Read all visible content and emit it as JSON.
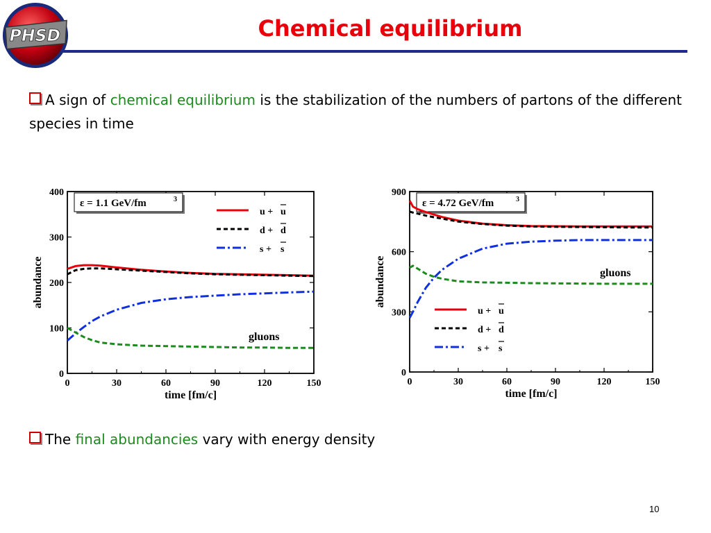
{
  "logo": {
    "text": "PHSD"
  },
  "title": "Chemical equilibrium",
  "bullets": [
    {
      "pre": "A sign of ",
      "highlight": "chemical equilibrium",
      "post": " is the stabilization of the numbers of partons of the different species in time"
    },
    {
      "pre": "The ",
      "highlight": "final abundancies",
      "post": " vary with energy density"
    }
  ],
  "page_number": "10",
  "colors": {
    "title": "#e8000b",
    "rule": "#1f2a8a",
    "highlight": "#1c8a1c",
    "quark_u": "#e8000b",
    "quark_d": "#000000",
    "quark_s": "#1030e0",
    "gluon": "#1c8a1c"
  },
  "chart_data": [
    {
      "type": "line",
      "annotation": "ε = 1.1 GeV/fm",
      "annotation_sup": "3",
      "xlabel": "time [fm/c]",
      "ylabel": "abundance",
      "xlim": [
        0,
        150
      ],
      "ylim": [
        0,
        400
      ],
      "xticks": [
        0,
        30,
        60,
        90,
        120,
        150
      ],
      "yticks": [
        0,
        100,
        200,
        300,
        400
      ],
      "legend_position": "top-right",
      "gluon_label": "gluons",
      "series": [
        {
          "name": "u + u",
          "key": "u",
          "x": [
            0,
            5,
            10,
            15,
            20,
            30,
            45,
            60,
            75,
            90,
            105,
            120,
            135,
            150
          ],
          "values": [
            230,
            236,
            238,
            238,
            237,
            233,
            228,
            224,
            221,
            219,
            218,
            217,
            216,
            215
          ]
        },
        {
          "name": "d + d",
          "key": "d",
          "x": [
            0,
            5,
            10,
            15,
            20,
            30,
            45,
            60,
            75,
            90,
            105,
            120,
            135,
            150
          ],
          "values": [
            218,
            227,
            230,
            231,
            231,
            229,
            226,
            223,
            220,
            218,
            217,
            216,
            215,
            214
          ]
        },
        {
          "name": "s + s",
          "key": "s",
          "x": [
            0,
            5,
            10,
            15,
            20,
            30,
            45,
            60,
            75,
            90,
            105,
            120,
            135,
            150
          ],
          "values": [
            72,
            88,
            102,
            115,
            125,
            140,
            155,
            163,
            168,
            171,
            174,
            176,
            178,
            180
          ]
        },
        {
          "name": "gluons",
          "key": "g",
          "x": [
            0,
            5,
            10,
            15,
            20,
            30,
            45,
            60,
            75,
            90,
            105,
            120,
            135,
            150
          ],
          "values": [
            100,
            90,
            80,
            73,
            68,
            64,
            61,
            60,
            59,
            58,
            57,
            57,
            56,
            56
          ]
        }
      ]
    },
    {
      "type": "line",
      "annotation": "ε = 4.72 GeV/fm",
      "annotation_sup": "3",
      "xlabel": "time [fm/c]",
      "ylabel": "abundance",
      "xlim": [
        0,
        150
      ],
      "ylim": [
        0,
        900
      ],
      "xticks": [
        0,
        30,
        60,
        90,
        120,
        150
      ],
      "yticks": [
        0,
        300,
        600,
        900
      ],
      "legend_position": "bottom-left",
      "gluon_label": "gluons",
      "series": [
        {
          "name": "u + u",
          "key": "u",
          "x": [
            0,
            2,
            5,
            10,
            15,
            20,
            30,
            45,
            60,
            75,
            90,
            105,
            120,
            135,
            150
          ],
          "values": [
            855,
            825,
            812,
            798,
            785,
            773,
            755,
            740,
            732,
            728,
            727,
            726,
            726,
            726,
            726
          ]
        },
        {
          "name": "d + d",
          "key": "d",
          "x": [
            0,
            2,
            5,
            10,
            15,
            20,
            30,
            45,
            60,
            75,
            90,
            105,
            120,
            135,
            150
          ],
          "values": [
            800,
            795,
            790,
            780,
            772,
            765,
            750,
            738,
            730,
            726,
            724,
            723,
            722,
            721,
            721
          ]
        },
        {
          "name": "s + s",
          "key": "s",
          "x": [
            0,
            2,
            5,
            10,
            15,
            20,
            30,
            45,
            60,
            75,
            90,
            105,
            120,
            135,
            150
          ],
          "values": [
            270,
            300,
            350,
            420,
            470,
            510,
            565,
            615,
            640,
            650,
            655,
            658,
            658,
            658,
            658
          ]
        },
        {
          "name": "gluons",
          "key": "g",
          "x": [
            0,
            2,
            5,
            10,
            15,
            20,
            30,
            45,
            60,
            75,
            90,
            105,
            120,
            135,
            150
          ],
          "values": [
            520,
            530,
            515,
            490,
            475,
            465,
            452,
            447,
            445,
            443,
            442,
            441,
            440,
            440,
            440
          ]
        }
      ]
    }
  ]
}
